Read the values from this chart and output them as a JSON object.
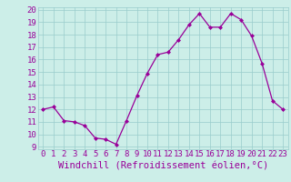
{
  "x": [
    0,
    1,
    2,
    3,
    4,
    5,
    6,
    7,
    8,
    9,
    10,
    11,
    12,
    13,
    14,
    15,
    16,
    17,
    18,
    19,
    20,
    21,
    22,
    23
  ],
  "y": [
    12.0,
    12.2,
    11.1,
    11.0,
    10.7,
    9.7,
    9.6,
    9.2,
    11.1,
    13.1,
    14.9,
    16.4,
    16.6,
    17.6,
    18.8,
    19.7,
    18.6,
    18.6,
    19.7,
    19.2,
    17.9,
    15.7,
    12.7,
    12.0
  ],
  "line_color": "#990099",
  "marker": "D",
  "marker_size": 2.0,
  "bg_color": "#cceee8",
  "grid_color": "#99cccc",
  "xlabel": "Windchill (Refroidissement éolien,°C)",
  "xlabel_color": "#990099",
  "xlabel_fontsize": 7.5,
  "tick_color": "#990099",
  "tick_fontsize": 6.5,
  "ylim": [
    9,
    20
  ],
  "xlim": [
    -0.5,
    23.5
  ],
  "yticks": [
    9,
    10,
    11,
    12,
    13,
    14,
    15,
    16,
    17,
    18,
    19,
    20
  ],
  "xticks": [
    0,
    1,
    2,
    3,
    4,
    5,
    6,
    7,
    8,
    9,
    10,
    11,
    12,
    13,
    14,
    15,
    16,
    17,
    18,
    19,
    20,
    21,
    22,
    23
  ]
}
